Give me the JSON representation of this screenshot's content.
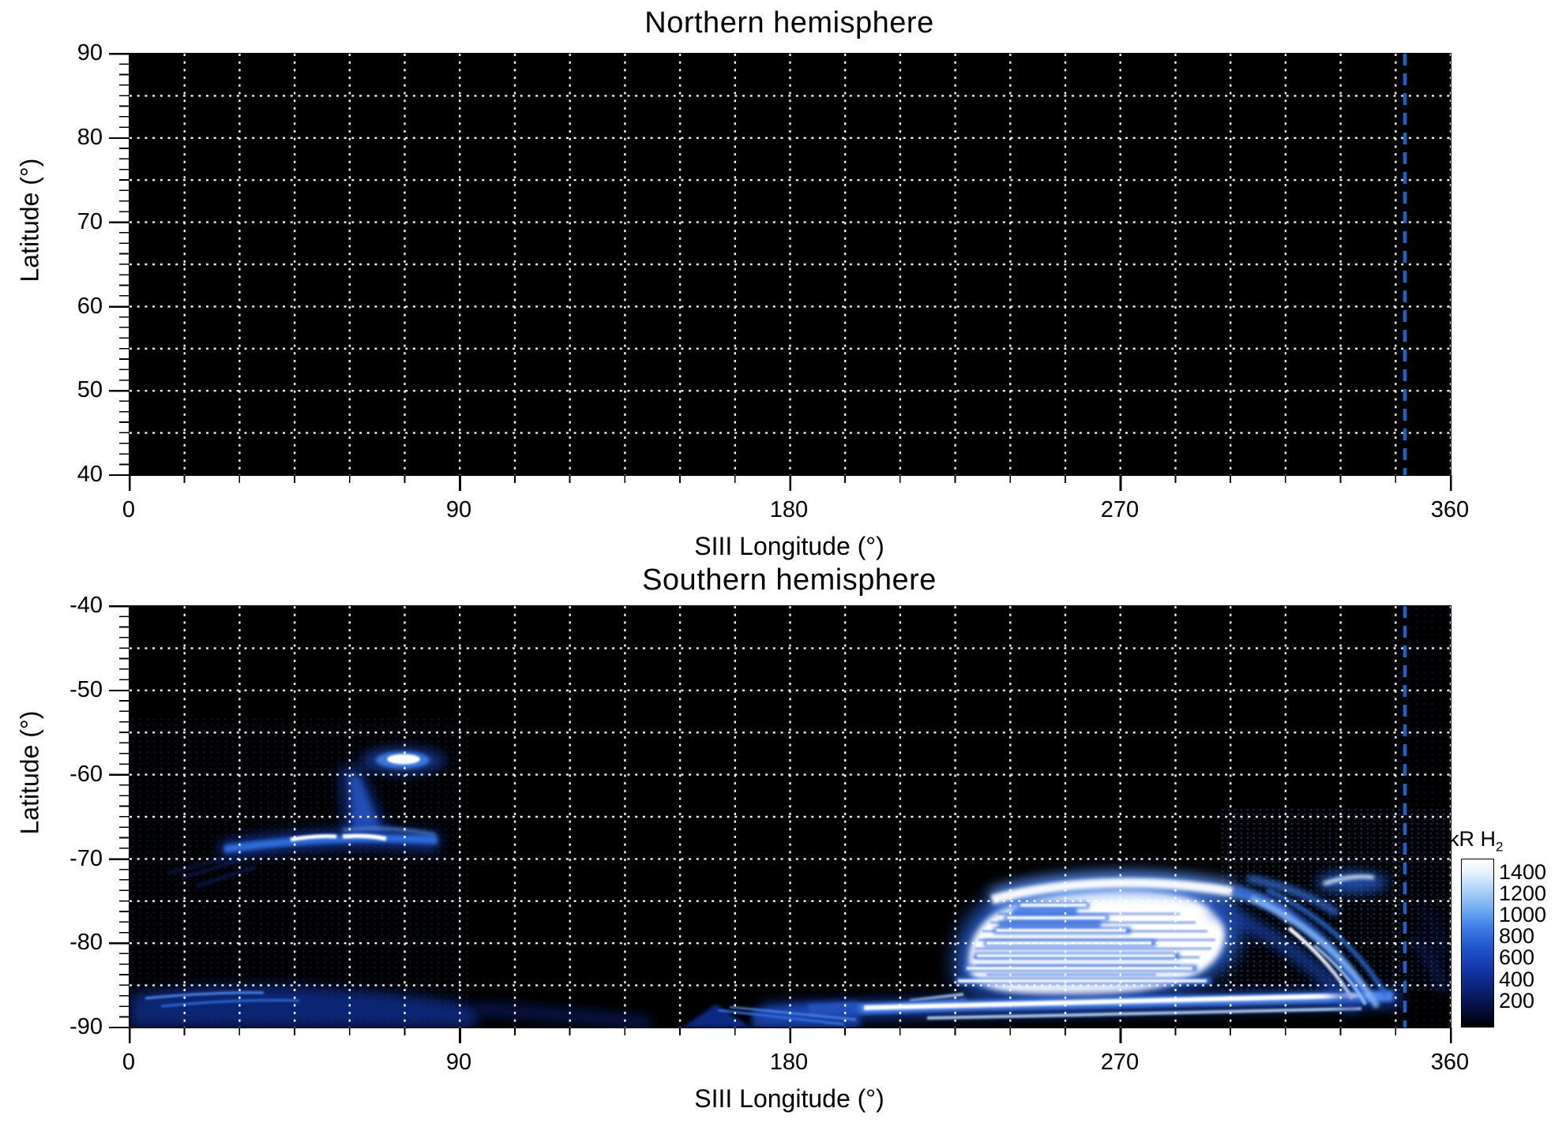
{
  "figure": {
    "panels": [
      {
        "title": "Northern hemisphere",
        "ylabel": "Latitude (°)",
        "xlabel": "SIII Longitude (°)",
        "ytick_labels": [
          "90",
          "80",
          "70",
          "60",
          "50",
          "40"
        ],
        "xtick_labels": [
          "0",
          "90",
          "180",
          "270",
          "360"
        ]
      },
      {
        "title": "Southern hemisphere",
        "ylabel": "Latitude (°)",
        "xlabel": "SIII Longitude (°)",
        "ytick_labels": [
          "-40",
          "-50",
          "-60",
          "-70",
          "-80",
          "-90"
        ],
        "xtick_labels": [
          "0",
          "90",
          "180",
          "270",
          "360"
        ],
        "colorbar": {
          "label": "kR H",
          "label_subscript": "2",
          "tick_labels": [
            "1400",
            "1200",
            "1000",
            "800",
            "600",
            "400",
            "200"
          ]
        }
      }
    ]
  },
  "chart_data": [
    {
      "type": "heatmap",
      "title": "Northern hemisphere",
      "xlabel": "SIII Longitude (°)",
      "ylabel": "Latitude (°)",
      "xlim": [
        0,
        360
      ],
      "ylim": [
        40,
        90
      ],
      "xticks": [
        0,
        90,
        180,
        270,
        360
      ],
      "yticks": [
        40,
        50,
        60,
        70,
        80,
        90
      ],
      "grid": {
        "lon_step_deg": 15,
        "lat_step_deg": 5,
        "style": "dotted",
        "color": "#ffffff"
      },
      "background": "#000000",
      "data_summary": "no detectable emission; entire map at ~0 kR (black)",
      "vline": {
        "longitude_deg": 347.5,
        "style": "dashed",
        "color": "#1565cd"
      }
    },
    {
      "type": "heatmap",
      "title": "Southern hemisphere",
      "xlabel": "SIII Longitude (°)",
      "ylabel": "Latitude (°)",
      "xlim": [
        0,
        360
      ],
      "ylim": [
        -90,
        -40
      ],
      "xticks": [
        0,
        90,
        180,
        270,
        360
      ],
      "yticks": [
        -90,
        -80,
        -70,
        -60,
        -50,
        -40
      ],
      "grid": {
        "lon_step_deg": 15,
        "lat_step_deg": 5,
        "style": "dotted",
        "color": "#ffffff"
      },
      "background": "#000000",
      "colorbar": {
        "label": "kR H2",
        "min": 0,
        "max": 1500,
        "ticks": [
          200,
          400,
          600,
          800,
          1000,
          1200,
          1400
        ]
      },
      "vline": {
        "longitude_deg": 347.5,
        "style": "dashed",
        "color": "#1565cd"
      },
      "features": [
        {
          "name": "auroral arc",
          "lon_range": [
            25,
            84
          ],
          "lat_range": [
            -69.5,
            -66.5
          ],
          "peak_kR": 1400
        },
        {
          "name": "bright spot",
          "lon_range": [
            67,
            81
          ],
          "lat_range": [
            -59.5,
            -57
          ],
          "peak_kR": 1400
        },
        {
          "name": "diffuse column",
          "lon_range": [
            57,
            72
          ],
          "lat_range": [
            -67,
            -58
          ],
          "peak_kR": 400
        },
        {
          "name": "main oval bright region",
          "lon_range": [
            212,
            335
          ],
          "lat_range": [
            -88,
            -72
          ],
          "peak_kR": 1500
        },
        {
          "name": "curved arc fan",
          "lon_range": [
            300,
            355
          ],
          "lat_range": [
            -88,
            -70
          ],
          "peak_kR": 900
        },
        {
          "name": "bottom band",
          "lon_range": [
            150,
            360
          ],
          "lat_range": [
            -89,
            -85
          ],
          "peak_kR": 1400
        },
        {
          "name": "diffuse polar emission",
          "lon_range": [
            0,
            95
          ],
          "lat_range": [
            -89.5,
            -84
          ],
          "peak_kR": 350
        }
      ]
    }
  ]
}
